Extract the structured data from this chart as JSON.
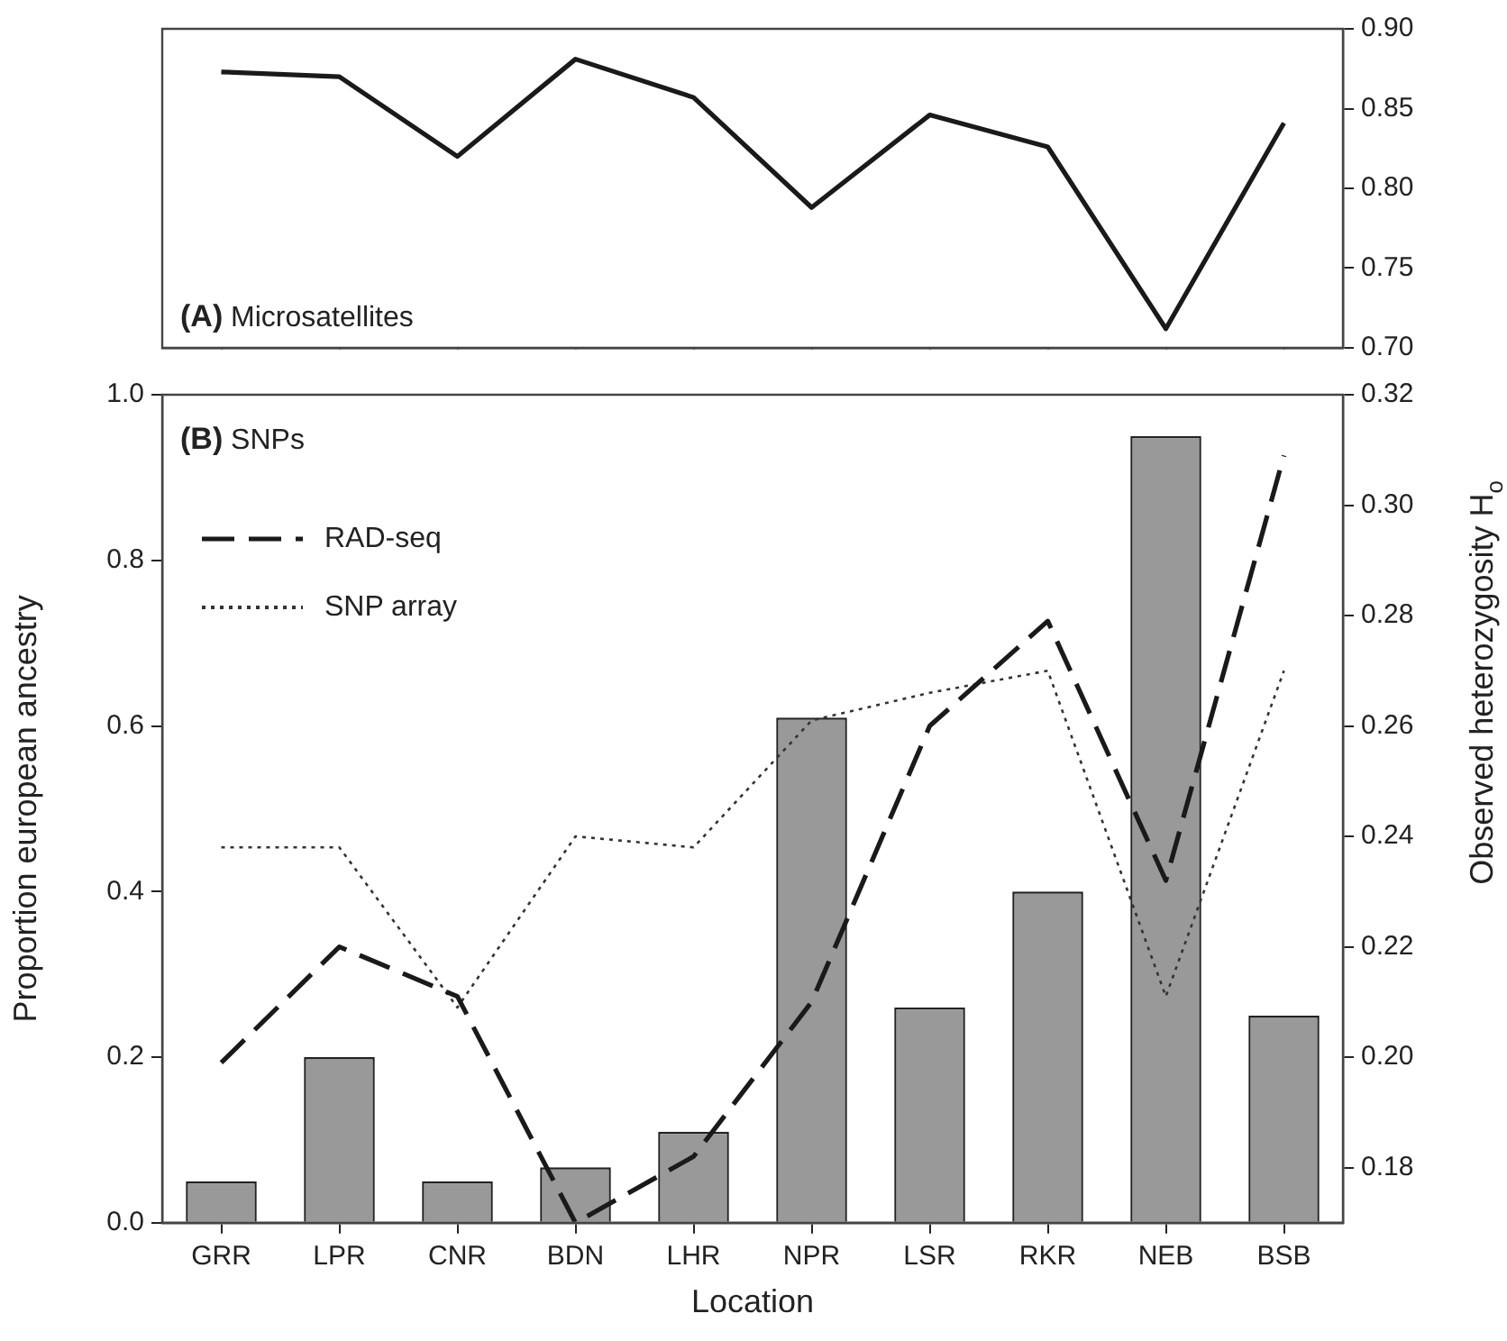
{
  "chart_data": [
    {
      "type": "line",
      "categories": [
        null,
        null,
        null,
        null,
        null,
        null,
        null,
        null,
        null,
        null
      ],
      "tick_labels": "y",
      "annotations": [
        "(A) Microsatellites"
      ],
      "series": [
        {
          "color": "#1a1a1a",
          "line_style": "solid",
          "values": [
            0.873,
            0.87,
            0.82,
            0.881,
            0.857,
            0.788,
            0.846,
            0.826,
            0.712,
            0.841
          ]
        }
      ],
      "ylim": [
        0.7,
        0.9
      ],
      "yticks": [
        {
          "value": 0.7,
          "label": "0.70"
        },
        0.75,
        {
          "value": 0.8,
          "label": "0.80"
        },
        0.85,
        {
          "value": 0.9,
          "label": "0.90"
        }
      ]
    },
    {
      "type": "bar",
      "categories": [
        "GRR",
        "LPR",
        "CNR",
        "BDN",
        "LHR",
        "NPR",
        "LSR",
        "RKR",
        "NEB",
        "BSB"
      ],
      "xlabel": "Location",
      "ylabel": "Proportion european ancestry",
      "y2label": "Observed heterozygosity H$_{o}$",
      "annotations": [
        "(B) SNPs"
      ],
      "legend": "top left",
      "series": [
        {
          "color": "#999999",
          "axis": "y",
          "values": [
            0.05,
            0.2,
            0.05,
            0.067,
            0.11,
            0.61,
            0.26,
            0.4,
            0.95,
            0.25
          ]
        },
        {
          "type": "line",
          "name": "RAD-seq",
          "color": "#1a1a1a",
          "axis": "y2",
          "line_style": "dashed",
          "values": [
            0.199,
            0.22,
            0.211,
            0.17,
            0.182,
            0.21,
            0.26,
            0.279,
            0.232,
            0.309
          ]
        },
        {
          "type": "line",
          "name": "SNP array",
          "color": "#333333",
          "axis": "y2",
          "line_style": "dotted",
          "values": [
            0.238,
            0.238,
            0.209,
            0.24,
            0.238,
            0.261,
            0.266,
            0.27,
            0.211,
            0.27
          ]
        }
      ],
      "ylim": [
        0,
        1
      ],
      "yticks": [
        {
          "value": 0,
          "label": "0.0"
        },
        0.2,
        0.4,
        0.6,
        0.8,
        {
          "value": 1,
          "label": "1.0"
        }
      ],
      "y2lim": [
        0.17,
        0.32
      ],
      "y2ticks": [
        0.18,
        {
          "value": 0.2,
          "label": "0.20"
        },
        0.22,
        0.24,
        0.26,
        0.28,
        {
          "value": 0.3,
          "label": "0.30"
        },
        0.32
      ]
    }
  ]
}
